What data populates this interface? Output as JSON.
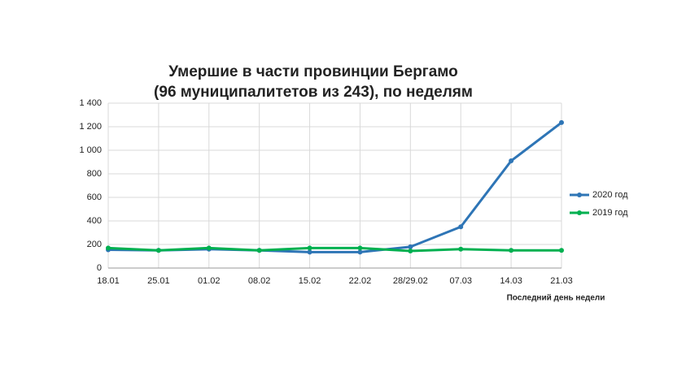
{
  "chart_data": {
    "type": "line",
    "title": [
      "Умершие в части провинции Бергамо",
      "(96 муниципалитетов из 243), по неделям"
    ],
    "x_label": "Последний день недели",
    "categories": [
      "18.01",
      "25.01",
      "01.02",
      "08.02",
      "15.02",
      "22.02",
      "28/29.02",
      "07.03",
      "14.03",
      "21.03"
    ],
    "series": [
      {
        "name": "2020 год",
        "color": "#2e75b6",
        "values": [
          155,
          150,
          160,
          150,
          135,
          135,
          180,
          350,
          910,
          1235
        ]
      },
      {
        "name": "2019 год",
        "color": "#00b050",
        "values": [
          170,
          150,
          170,
          150,
          170,
          170,
          145,
          160,
          150,
          150
        ]
      }
    ],
    "ylim": [
      0,
      1400
    ],
    "yticks": [
      0,
      200,
      400,
      600,
      800,
      {
        "value": 1000,
        "label": "1 000"
      },
      {
        "value": 1200,
        "label": "1 200"
      },
      {
        "value": 1400,
        "label": "1 400"
      }
    ],
    "grid": true,
    "legend": "right"
  }
}
